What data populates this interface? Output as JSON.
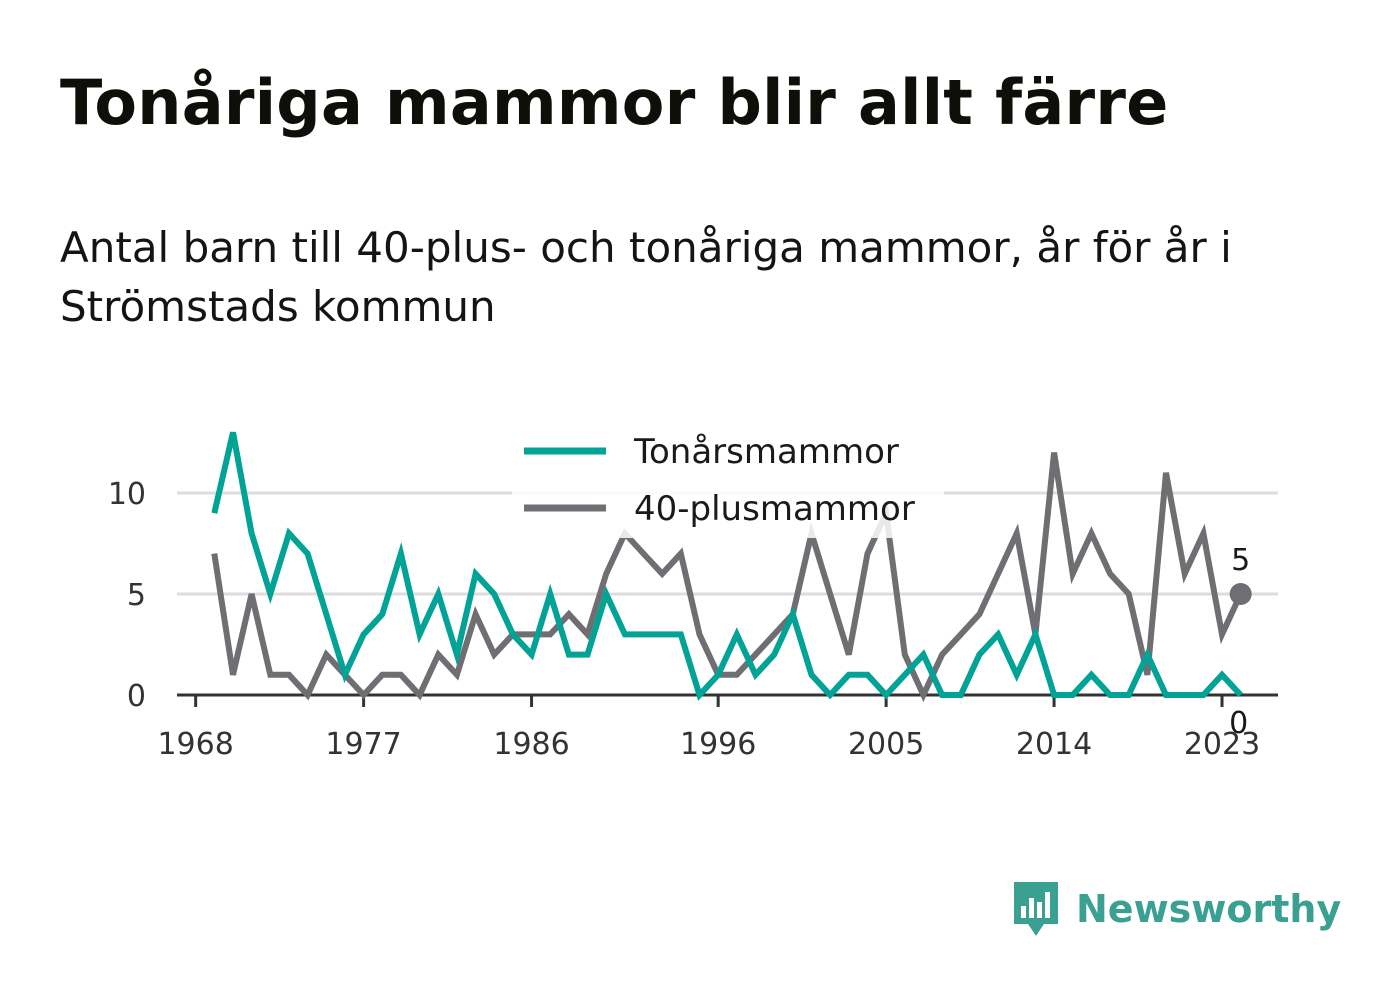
{
  "title": "Tonåriga mammor blir allt färre",
  "subtitle": "Antal barn till 40-plus- och tonåriga mammor, år för år i Strömstads kommun",
  "brand": {
    "name": "Newsworthy",
    "icon": "newsworthy-logo-icon",
    "color": "#3aa091"
  },
  "chart_data": {
    "type": "line",
    "x_ticks": [
      1968,
      1977,
      1986,
      1996,
      2005,
      2014,
      2023
    ],
    "y_ticks": [
      0,
      5,
      10
    ],
    "ylim": [
      0,
      13
    ],
    "xlim": [
      1967,
      2026
    ],
    "grid": true,
    "legend_position": "top-center",
    "x": [
      1969,
      1970,
      1971,
      1972,
      1973,
      1974,
      1975,
      1976,
      1977,
      1978,
      1979,
      1980,
      1981,
      1982,
      1983,
      1984,
      1985,
      1986,
      1987,
      1988,
      1989,
      1990,
      1991,
      1992,
      1993,
      1994,
      1995,
      1996,
      1997,
      1998,
      1999,
      2000,
      2001,
      2002,
      2003,
      2004,
      2005,
      2006,
      2007,
      2008,
      2009,
      2010,
      2011,
      2012,
      2013,
      2014,
      2015,
      2016,
      2017,
      2018,
      2019,
      2020,
      2021,
      2022,
      2023,
      2024
    ],
    "series": [
      {
        "name": "Tonårsmammor",
        "color": "#00a396",
        "values": [
          9,
          13,
          8,
          5,
          8,
          7,
          4,
          1,
          3,
          4,
          7,
          3,
          5,
          2,
          6,
          5,
          3,
          2,
          5,
          2,
          2,
          5,
          3,
          3,
          3,
          3,
          0,
          1,
          3,
          1,
          2,
          4,
          1,
          0,
          1,
          1,
          0,
          1,
          2,
          0,
          0,
          2,
          3,
          1,
          3,
          0,
          0,
          1,
          0,
          0,
          2,
          0,
          0,
          0,
          1,
          0
        ],
        "end_label": "0"
      },
      {
        "name": "40-plusmammor",
        "color": "#6e6e73",
        "values": [
          7,
          1,
          5,
          1,
          1,
          0,
          2,
          1,
          0,
          1,
          1,
          0,
          2,
          1,
          4,
          2,
          3,
          3,
          3,
          4,
          3,
          6,
          8,
          7,
          6,
          7,
          3,
          1,
          1,
          2,
          3,
          4,
          8,
          5,
          2,
          7,
          9,
          2,
          0,
          2,
          3,
          4,
          6,
          8,
          3,
          12,
          6,
          8,
          6,
          5,
          1,
          11,
          6,
          8,
          3,
          5
        ],
        "end_label": "5"
      }
    ]
  }
}
